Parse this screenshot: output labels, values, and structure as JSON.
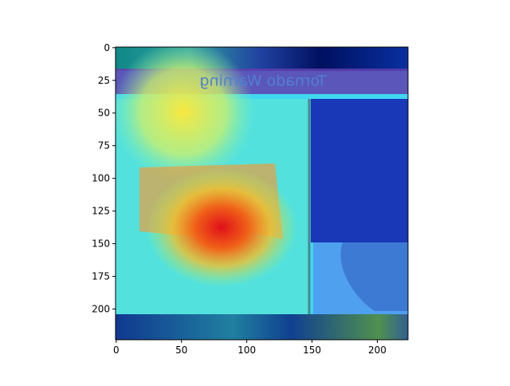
{
  "chart_data": {
    "type": "image",
    "annotations": [
      "Tornado Warning"
    ],
    "xlim": [
      -0.5,
      223.5
    ],
    "ylim": [
      223.5,
      -0.5
    ],
    "xticks": [
      0,
      50,
      100,
      150,
      200
    ],
    "yticks": [
      0,
      25,
      50,
      75,
      100,
      125,
      150,
      175,
      200
    ]
  }
}
